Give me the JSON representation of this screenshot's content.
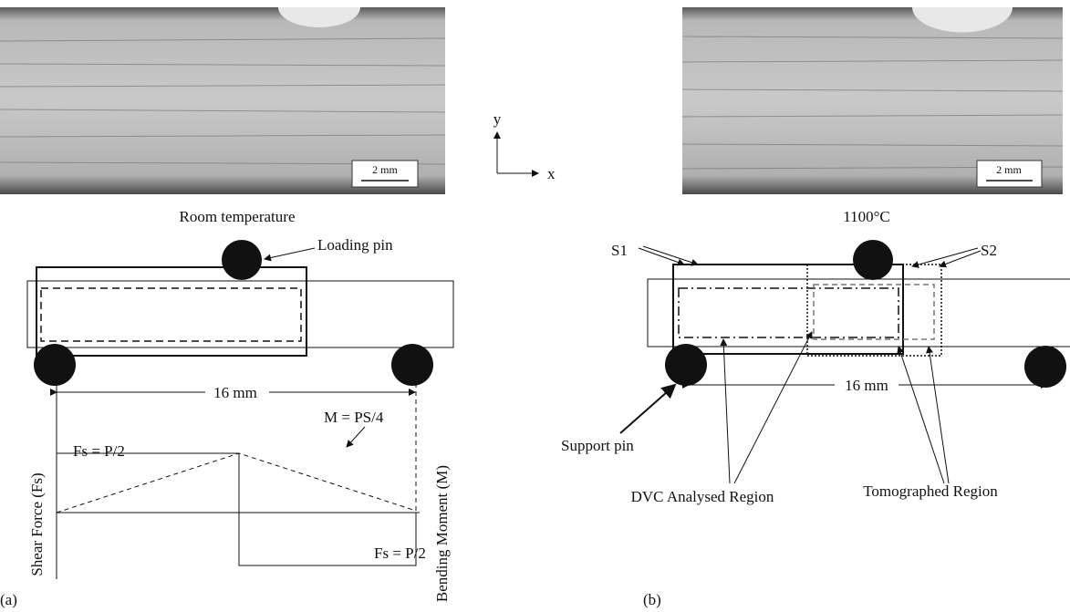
{
  "panel_a": {
    "label": "(a)",
    "micrograph": {
      "scale_bar": "2 mm",
      "caption": "Room temperature"
    },
    "loading_pin": "Loading pin",
    "span": "16 mm",
    "diagram": {
      "shear_top": "Fs = P/2",
      "shear_bottom": "Fs = P/2",
      "moment": "M = PS/4",
      "left_axis": "Shear Force (Fs)",
      "right_axis": "Bending Moment (M)"
    }
  },
  "axes": {
    "y": "y",
    "x": "x"
  },
  "panel_b": {
    "label": "(b)",
    "micrograph": {
      "scale_bar": "2 mm",
      "caption": "1100°C"
    },
    "s1": "S1",
    "s2": "S2",
    "span": "16 mm",
    "support_pin": "Support pin",
    "dvc_region": "DVC Analysed Region",
    "tomo_region": "Tomographed Region"
  }
}
